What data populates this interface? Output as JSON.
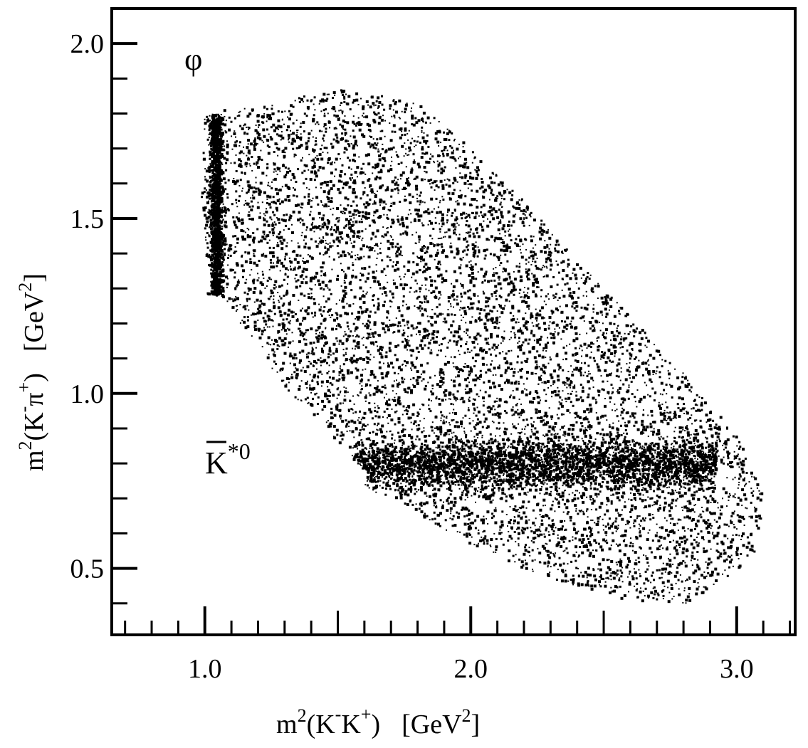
{
  "chart_data": {
    "type": "scatter",
    "title": "",
    "xlabel": {
      "base": "m",
      "exp": "2",
      "open": "(K",
      "sup1": "-",
      "mid": "K",
      "sup2": "+",
      "close": ")",
      "unit_open": "[GeV",
      "unit_exp": "2",
      "unit_close": "]"
    },
    "ylabel": {
      "base": "m",
      "exp": "2",
      "open": "(K",
      "sup1": "-",
      "mid": "π",
      "sup2": "+",
      "close": ")",
      "unit_open": "[GeV",
      "unit_exp": "2",
      "unit_close": "]"
    },
    "xlim": [
      0.65,
      3.22
    ],
    "ylim": [
      0.31,
      2.1
    ],
    "x_ticks": [
      {
        "value": 1.0,
        "label": "1.0"
      },
      {
        "value": 2.0,
        "label": "2.0"
      },
      {
        "value": 3.0,
        "label": "3.0"
      }
    ],
    "y_ticks": [
      {
        "value": 0.5,
        "label": "0.5"
      },
      {
        "value": 1.0,
        "label": "1.0"
      },
      {
        "value": 1.5,
        "label": "1.5"
      },
      {
        "value": 2.0,
        "label": "2.0"
      }
    ],
    "x_minor_step": 0.1,
    "y_minor_step": 0.1,
    "grid": false,
    "legend": "none",
    "annotations": [
      {
        "id": "phi",
        "text": "φ",
        "x": 1.0,
        "y": 1.95
      },
      {
        "id": "kstar",
        "base": "K",
        "sup": "*0",
        "bar": true,
        "x": 1.07,
        "y": 0.8
      }
    ],
    "boundary_upper": [
      [
        1.0,
        1.82
      ],
      [
        1.2,
        1.82
      ],
      [
        1.5,
        1.88
      ],
      [
        1.8,
        1.83
      ],
      [
        2.0,
        1.7
      ],
      [
        2.2,
        1.55
      ],
      [
        2.4,
        1.38
      ],
      [
        2.6,
        1.22
      ],
      [
        2.8,
        1.06
      ],
      [
        3.0,
        0.88
      ],
      [
        3.1,
        0.7
      ],
      [
        3.07,
        0.55
      ],
      [
        2.97,
        0.48
      ]
    ],
    "boundary_lower": [
      [
        1.0,
        1.82
      ],
      [
        0.98,
        1.6
      ],
      [
        1.0,
        1.4
      ],
      [
        1.05,
        1.3
      ],
      [
        1.15,
        1.18
      ],
      [
        1.3,
        1.02
      ],
      [
        1.45,
        0.9
      ],
      [
        1.6,
        0.78
      ],
      [
        1.8,
        0.65
      ],
      [
        2.0,
        0.57
      ],
      [
        2.2,
        0.5
      ],
      [
        2.4,
        0.45
      ],
      [
        2.6,
        0.41
      ],
      [
        2.8,
        0.4
      ],
      [
        2.97,
        0.48
      ]
    ],
    "bands": [
      {
        "name": "phi",
        "x_center": 1.04,
        "x_width": 0.02,
        "y_range": [
          1.28,
          1.8
        ],
        "density": "high"
      },
      {
        "name": "K*0",
        "y_center": 0.8,
        "y_width": 0.05,
        "x_range": [
          1.55,
          2.92
        ],
        "density": "high"
      }
    ],
    "marker_color": "#000000",
    "axis_color": "#000000",
    "background": "#ffffff"
  }
}
